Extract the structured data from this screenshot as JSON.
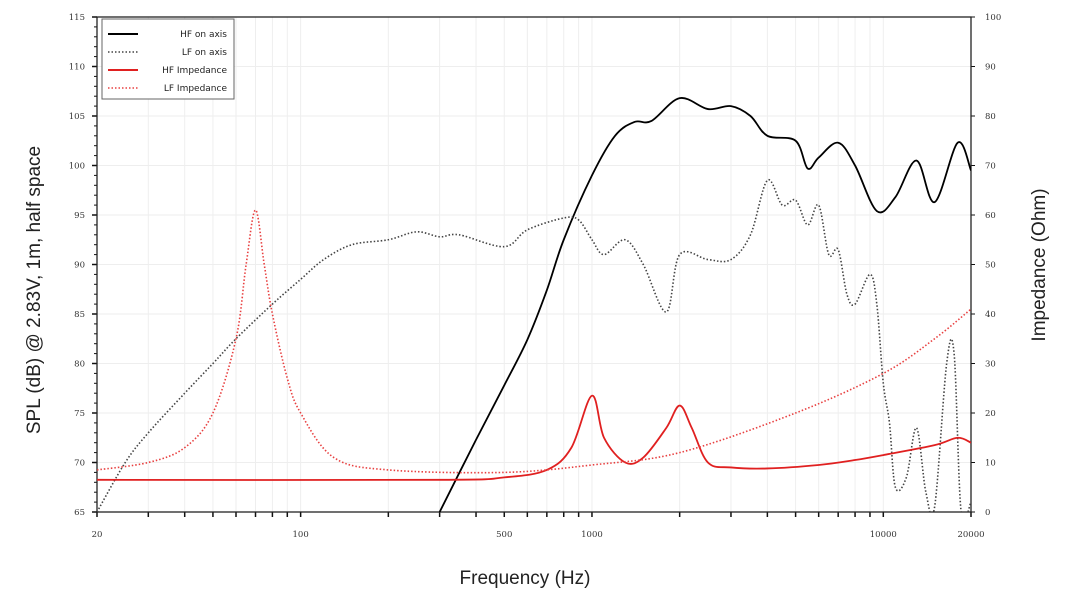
{
  "chart_data": {
    "type": "line",
    "xlabel": "Frequency (Hz)",
    "ylabel": "SPL (dB) @ 2.83V, 1m, half space",
    "y2label": "Impedance (Ohm)",
    "xscale": "log",
    "xlim": [
      20,
      20000
    ],
    "ylim": [
      65,
      115
    ],
    "y2lim": [
      0,
      100
    ],
    "grid": true,
    "legend_position": "top-left",
    "x_tick_labels": [
      "20",
      "100",
      "500",
      "1000",
      "10000",
      "20000"
    ],
    "y_tick_labels": [
      "65",
      "70",
      "75",
      "80",
      "85",
      "90",
      "95",
      "100",
      "105",
      "110",
      "115"
    ],
    "y2_tick_labels": [
      "0",
      "10",
      "20",
      "30",
      "40",
      "50",
      "60",
      "70",
      "80",
      "90",
      "100"
    ],
    "series": [
      {
        "name": "HF on axis",
        "axis": "left",
        "color": "#000000",
        "style": "solid",
        "x": [
          300,
          400,
          500,
          600,
          700,
          800,
          1000,
          1200,
          1400,
          1600,
          2000,
          2500,
          3000,
          3500,
          4000,
          5000,
          5500,
          6000,
          7000,
          8000,
          9500,
          11000,
          13000,
          15000,
          18000,
          20000
        ],
        "y": [
          65,
          72.3,
          77.8,
          82.4,
          87.4,
          92.5,
          99,
          103,
          104.4,
          104.5,
          106.8,
          105.7,
          106,
          105,
          103,
          102.5,
          99.7,
          100.8,
          102.3,
          100,
          95.4,
          96.8,
          100.5,
          96.3,
          102.3,
          99.5
        ]
      },
      {
        "name": "LF on axis",
        "axis": "left",
        "color": "#444444",
        "style": "dotted",
        "x": [
          20,
          25,
          30,
          40,
          50,
          60,
          80,
          100,
          120,
          150,
          200,
          250,
          300,
          350,
          500,
          600,
          800,
          900,
          1000,
          1100,
          1300,
          1500,
          1800,
          2000,
          2500,
          3000,
          3500,
          4000,
          4500,
          5000,
          5500,
          6000,
          6500,
          7000,
          7500,
          8000,
          9000,
          9500,
          10000,
          10500,
          11000,
          12000,
          13000,
          14000,
          15000,
          16500,
          17500,
          18500,
          20000
        ],
        "y": [
          65,
          70,
          73,
          77,
          80,
          82.5,
          86,
          88.5,
          90.5,
          92,
          92.5,
          93.3,
          92.8,
          93,
          91.8,
          93.5,
          94.7,
          94.5,
          92.5,
          91,
          92.5,
          90,
          85.2,
          91,
          90.5,
          90.5,
          93,
          98.5,
          96,
          96.5,
          94,
          96,
          91,
          91.5,
          87,
          86,
          89,
          86,
          78,
          74,
          67.5,
          68.5,
          73.5,
          67,
          65.5,
          80,
          81,
          65,
          66
        ]
      },
      {
        "name": "HF Impedance",
        "axis": "right",
        "color": "#e02020",
        "style": "solid",
        "x": [
          20,
          300,
          500,
          700,
          850,
          1000,
          1100,
          1300,
          1500,
          1800,
          2000,
          2200,
          2500,
          3000,
          4000,
          6000,
          8000,
          10000,
          15000,
          18000,
          20000
        ],
        "y": [
          6.5,
          6.5,
          7,
          8.5,
          13,
          23.5,
          15,
          10,
          11,
          17,
          21.5,
          17,
          10,
          9,
          8.8,
          9.5,
          10.5,
          11.5,
          13.5,
          15,
          14
        ]
      },
      {
        "name": "LF Impedance",
        "axis": "right",
        "color": "#e84040",
        "style": "dotted",
        "x": [
          20,
          30,
          40,
          50,
          60,
          65,
          70,
          75,
          80,
          90,
          100,
          130,
          200,
          500,
          1000,
          2000,
          5000,
          10000,
          15000,
          20000
        ],
        "y": [
          8.5,
          10,
          13,
          20,
          35,
          50,
          61,
          50,
          40,
          27,
          20,
          11,
          8.5,
          8,
          9.5,
          12,
          20,
          28,
          35,
          41
        ]
      }
    ]
  }
}
